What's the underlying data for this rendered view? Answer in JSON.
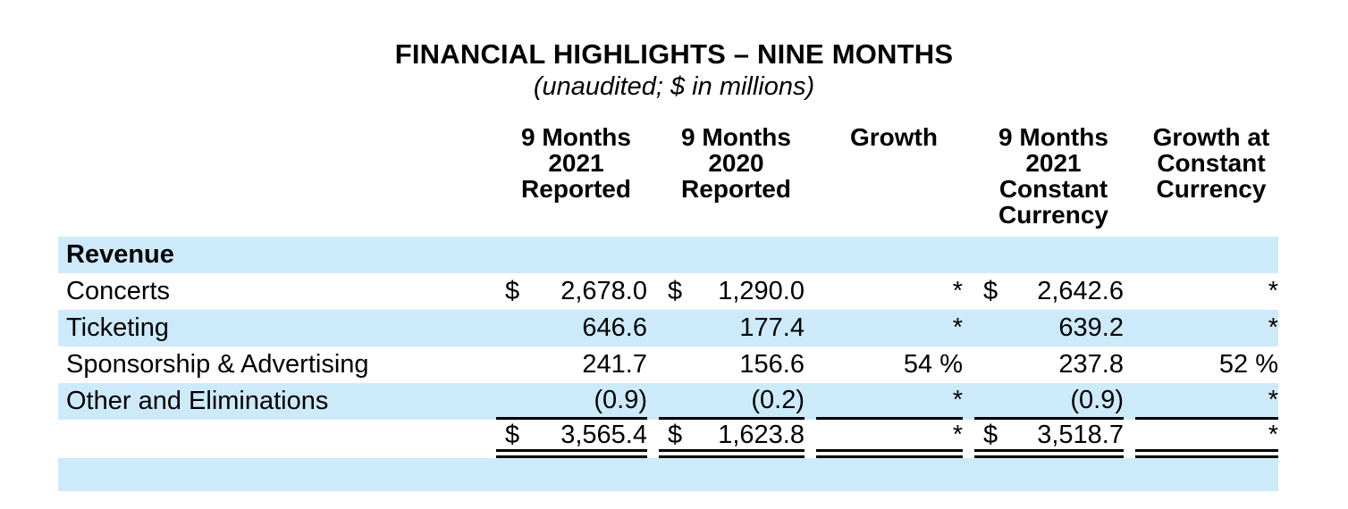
{
  "title": "FINANCIAL HIGHLIGHTS – NINE MONTHS",
  "subtitle": "(unaudited; $ in millions)",
  "colors": {
    "row_highlight": "#cdeafb",
    "text": "#000000",
    "rule": "#000000",
    "background": "#ffffff"
  },
  "table": {
    "columns": [
      {
        "label": "9 Months\n2021\nReported"
      },
      {
        "label": "9 Months\n2020\nReported"
      },
      {
        "label": "Growth"
      },
      {
        "label": "9 Months\n2021\nConstant\nCurrency"
      },
      {
        "label": "Growth at\nConstant\nCurrency"
      }
    ],
    "rows": [
      {
        "label": "Revenue",
        "section": true,
        "cells": [
          {},
          {},
          {},
          {},
          {}
        ]
      },
      {
        "label": "Concerts",
        "cells": [
          {
            "dollar": "$",
            "value": "2,678.0"
          },
          {
            "dollar": "$",
            "value": "1,290.0"
          },
          {
            "value": "*"
          },
          {
            "dollar": "$",
            "value": "2,642.6"
          },
          {
            "value": "*"
          }
        ]
      },
      {
        "label": "Ticketing",
        "cells": [
          {
            "value": "646.6"
          },
          {
            "value": "177.4"
          },
          {
            "value": "*"
          },
          {
            "value": "639.2"
          },
          {
            "value": "*"
          }
        ]
      },
      {
        "label": "Sponsorship & Advertising",
        "cells": [
          {
            "value": "241.7"
          },
          {
            "value": "156.6"
          },
          {
            "value": "54 %"
          },
          {
            "value": "237.8"
          },
          {
            "value": "52 %"
          }
        ]
      },
      {
        "label": "Other and Eliminations",
        "cells": [
          {
            "value": "(0.9)"
          },
          {
            "value": "(0.2)"
          },
          {
            "value": "*"
          },
          {
            "value": "(0.9)"
          },
          {
            "value": "*"
          }
        ]
      },
      {
        "label": "",
        "total": true,
        "cells": [
          {
            "dollar": "$",
            "value": "3,565.4"
          },
          {
            "dollar": "$",
            "value": "1,623.8"
          },
          {
            "value": "*"
          },
          {
            "dollar": "$",
            "value": "3,518.7"
          },
          {
            "value": "*"
          }
        ]
      }
    ]
  }
}
